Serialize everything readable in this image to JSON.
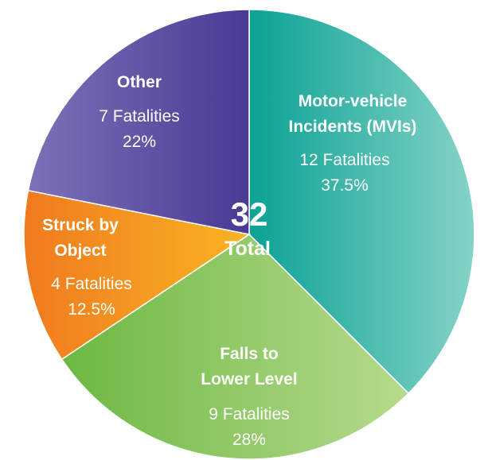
{
  "chart_data": {
    "type": "pie",
    "categories": [
      "Motor-vehicle Incidents (MVIs)",
      "Falls to Lower Level",
      "Struck by Object",
      "Other"
    ],
    "values": [
      12,
      9,
      4,
      7
    ],
    "value_labels": [
      "12 Fatalities",
      "9 Fatalities",
      "4 Fatalities",
      "7 Fatalities"
    ],
    "percents": [
      {
        "value": 37.5,
        "label": "37.5%"
      },
      {
        "value": 28,
        "label": "28%"
      },
      {
        "value": 12.5,
        "label": "12.5%"
      },
      {
        "value": 22,
        "label": "22%"
      }
    ],
    "colors": [
      [
        "#0ba294",
        "#85d3c7"
      ],
      [
        "#6cb842",
        "#b7da8d"
      ],
      [
        "#f07a1e",
        "#f9b424"
      ],
      [
        "#7c72b8",
        "#493a94"
      ]
    ],
    "total": 32,
    "total_label": "Total"
  }
}
